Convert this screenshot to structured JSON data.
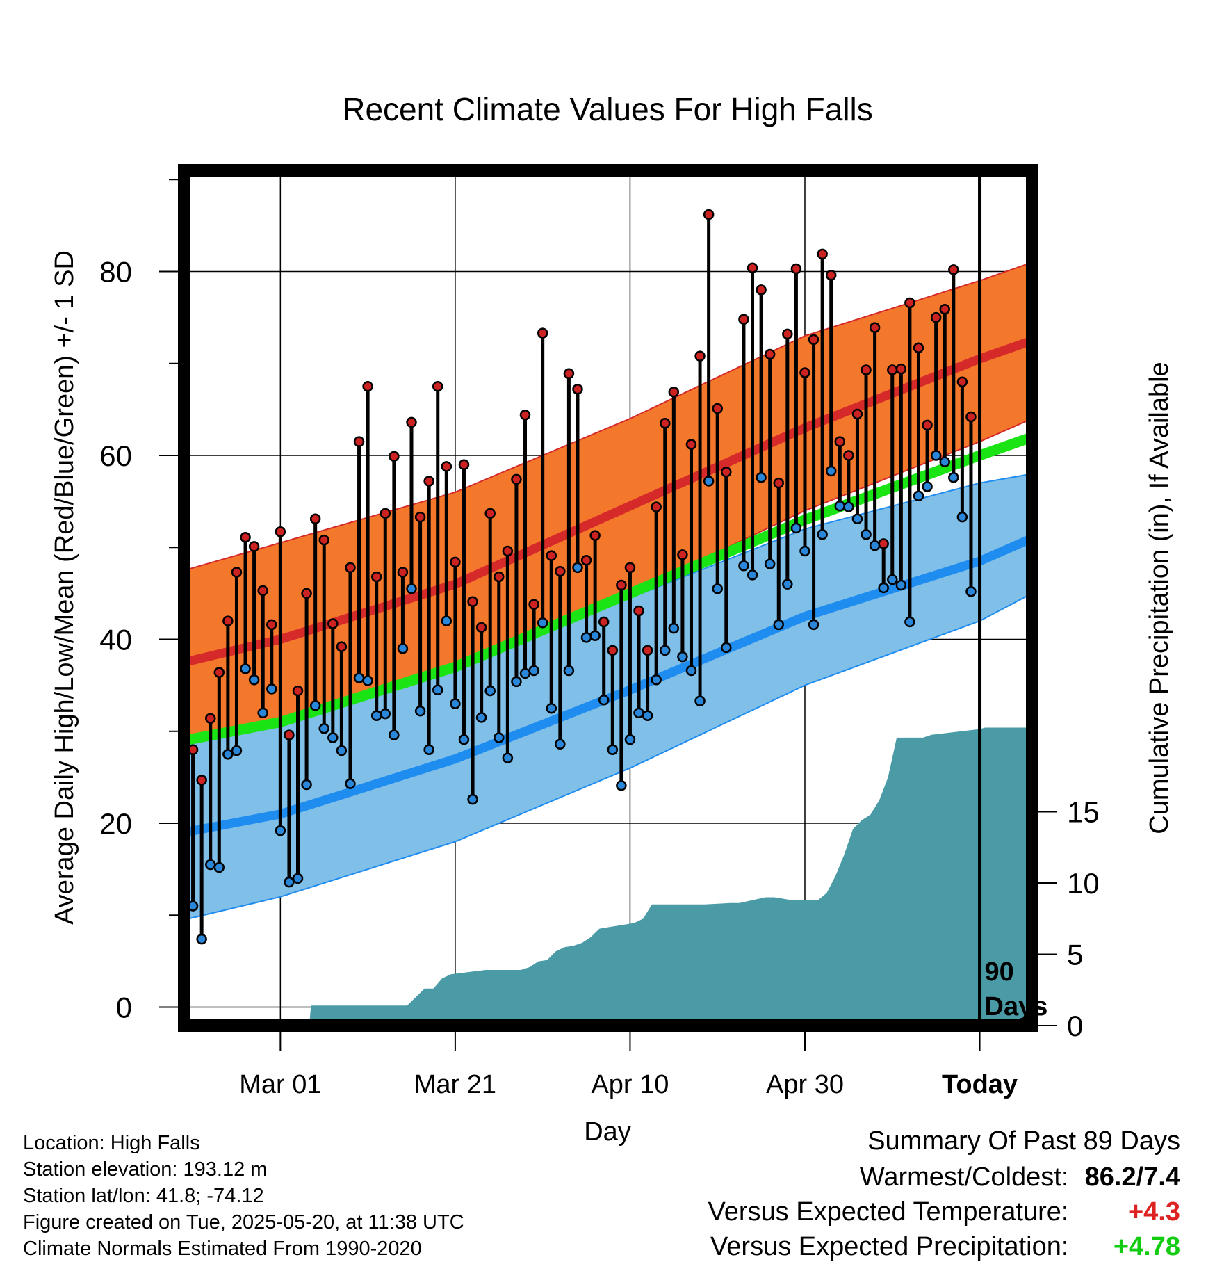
{
  "chart_data": {
    "type": "line",
    "title": "Recent Climate Values For High Falls",
    "xlabel": "Day",
    "ylabel": "Average Daily High/Low/Mean (Red/Blue/Green) +/- 1 SD",
    "y2label": "Cumulative Precipitation (in), If Available",
    "xlim": [
      -11,
      86
    ],
    "ylim": [
      -2,
      91
    ],
    "y2lim": [
      0,
      60
    ],
    "x_ticks": [
      {
        "day": 0,
        "label": "Mar 01"
      },
      {
        "day": 20,
        "label": "Mar 21"
      },
      {
        "day": 40,
        "label": "Apr 10"
      },
      {
        "day": 60,
        "label": "Apr 30"
      },
      {
        "day": 80,
        "label": "Today"
      }
    ],
    "y_ticks": [
      0,
      20,
      40,
      60,
      80
    ],
    "y2_ticks": [
      0,
      5,
      10,
      15
    ],
    "today_day": 80,
    "today_label_1": "90",
    "today_label_2": "Days",
    "normal_high": {
      "x": [
        -11,
        0,
        20,
        40,
        60,
        80,
        86
      ],
      "mean": [
        37.5,
        40.0,
        46.0,
        54.5,
        63.0,
        70.5,
        72.5
      ],
      "upper": [
        47.5,
        50.5,
        56.0,
        64.0,
        73.0,
        79.0,
        81.0
      ],
      "lower": [
        29.0,
        31.0,
        36.5,
        45.0,
        54.0,
        61.5,
        64.0
      ]
    },
    "normal_low": {
      "x": [
        -11,
        0,
        20,
        40,
        60,
        80,
        86
      ],
      "mean": [
        19.0,
        21.0,
        27.0,
        34.5,
        42.5,
        48.5,
        51.0
      ],
      "upper": [
        29.0,
        31.5,
        37.0,
        44.5,
        52.0,
        57.0,
        58.0
      ],
      "lower": [
        9.5,
        12.0,
        18.0,
        26.0,
        35.0,
        42.0,
        45.0
      ]
    },
    "normal_mean": {
      "x": [
        -11,
        0,
        20,
        40,
        60,
        80,
        86
      ],
      "values": [
        29.0,
        31.0,
        37.0,
        45.0,
        53.0,
        60.0,
        62.0
      ]
    },
    "daily_high_low": [
      [
        -10,
        28,
        11
      ],
      [
        -9,
        24.7,
        7.4
      ],
      [
        -8,
        31.4,
        15.5
      ],
      [
        -7,
        36.4,
        15.2
      ],
      [
        -6,
        42,
        27.5
      ],
      [
        -5,
        47.3,
        27.9
      ],
      [
        -4,
        51.1,
        36.8
      ],
      [
        -3,
        50.1,
        35.6
      ],
      [
        -2,
        45.3,
        32
      ],
      [
        -1,
        41.6,
        34.6
      ],
      [
        0,
        51.7,
        19.2
      ],
      [
        1,
        29.6,
        13.6
      ],
      [
        2,
        34.4,
        14
      ],
      [
        3,
        45,
        24.2
      ],
      [
        4,
        53.1,
        32.8
      ],
      [
        5,
        50.8,
        30.3
      ],
      [
        6,
        41.7,
        29.3
      ],
      [
        7,
        39.2,
        27.9
      ],
      [
        8,
        47.8,
        24.3
      ],
      [
        9,
        61.5,
        35.8
      ],
      [
        10,
        67.5,
        35.5
      ],
      [
        11,
        46.8,
        31.7
      ],
      [
        12,
        53.7,
        31.9
      ],
      [
        13,
        59.9,
        29.6
      ],
      [
        14,
        47.3,
        39
      ],
      [
        15,
        63.6,
        45.5
      ],
      [
        16,
        53.3,
        32.2
      ],
      [
        17,
        57.2,
        28
      ],
      [
        18,
        67.5,
        34.5
      ],
      [
        19,
        58.8,
        42
      ],
      [
        20,
        48.4,
        33
      ],
      [
        21,
        59,
        29.1
      ],
      [
        22,
        44.1,
        22.6
      ],
      [
        23,
        41.3,
        31.5
      ],
      [
        24,
        53.7,
        34.4
      ],
      [
        25,
        46.8,
        29.3
      ],
      [
        26,
        49.6,
        27.1
      ],
      [
        27,
        57.4,
        35.4
      ],
      [
        28,
        64.4,
        36.3
      ],
      [
        29,
        43.8,
        36.6
      ],
      [
        30,
        73.3,
        41.8
      ],
      [
        31,
        49.1,
        32.5
      ],
      [
        32,
        47.4,
        28.6
      ],
      [
        33,
        68.9,
        36.6
      ],
      [
        34,
        67.2,
        47.8
      ],
      [
        35,
        48.6,
        40.2
      ],
      [
        36,
        51.3,
        40.4
      ],
      [
        37,
        41.9,
        33.4
      ],
      [
        38,
        38.8,
        28
      ],
      [
        39,
        45.9,
        24.1
      ],
      [
        40,
        47.8,
        29.1
      ],
      [
        41,
        43.1,
        32
      ],
      [
        42,
        38.8,
        31.7
      ],
      [
        43,
        54.4,
        35.6
      ],
      [
        44,
        63.5,
        38.8
      ],
      [
        45,
        66.9,
        41.2
      ],
      [
        46,
        49.2,
        38.1
      ],
      [
        47,
        61.2,
        36.6
      ],
      [
        48,
        70.8,
        33.3
      ],
      [
        49,
        86.2,
        57.2
      ],
      [
        50,
        65.1,
        45.5
      ],
      [
        51,
        58.2,
        39.1
      ],
      [
        53,
        74.8,
        48
      ],
      [
        54,
        80.4,
        47
      ],
      [
        55,
        78,
        57.6
      ],
      [
        56,
        71,
        48.2
      ],
      [
        57,
        57,
        41.6
      ],
      [
        58,
        73.2,
        46
      ],
      [
        59,
        80.3,
        52.1
      ],
      [
        60,
        69,
        49.6
      ],
      [
        61,
        72.6,
        41.6
      ],
      [
        62,
        81.9,
        51.4
      ],
      [
        63,
        79.6,
        58.3
      ],
      [
        64,
        61.5,
        54.5
      ],
      [
        65,
        60,
        54.4
      ],
      [
        66,
        64.5,
        53.1
      ],
      [
        67,
        69.3,
        51.4
      ],
      [
        68,
        73.9,
        50.2
      ],
      [
        69,
        50.4,
        45.6
      ],
      [
        70,
        69.3,
        46.5
      ],
      [
        71,
        69.4,
        45.9
      ],
      [
        72,
        76.6,
        41.9
      ],
      [
        73,
        71.7,
        55.6
      ],
      [
        74,
        63.3,
        56.6
      ],
      [
        75,
        75,
        60
      ],
      [
        76,
        75.9,
        59.3
      ],
      [
        77,
        80.2,
        57.6
      ],
      [
        78,
        68,
        53.3
      ],
      [
        79,
        64.2,
        45.2
      ]
    ],
    "cumulative_precip": {
      "x": [
        3.3,
        3.5,
        14.5,
        15.5,
        16.5,
        17.5,
        18.5,
        19.5,
        23.5,
        27.5,
        28.5,
        29.5,
        30.5,
        31.5,
        32.5,
        33.5,
        34.5,
        35.5,
        36.5,
        37.5,
        39.5,
        40.5,
        41.5,
        42.5,
        46.5,
        48.5,
        51.5,
        52.5,
        55.5,
        56.5,
        58.5,
        61.5,
        62.5,
        63.5,
        64.5,
        65.5,
        66.5,
        67.5,
        68.5,
        69.5,
        70.5,
        71.5,
        73.5,
        74.5,
        80,
        80.6,
        86
      ],
      "values": [
        0,
        1.4,
        1.4,
        2.0,
        2.6,
        2.6,
        3.3,
        3.6,
        3.9,
        3.9,
        4.1,
        4.5,
        4.6,
        5.2,
        5.5,
        5.6,
        5.8,
        6.2,
        6.8,
        6.9,
        7.1,
        7.2,
        7.5,
        8.5,
        8.5,
        8.5,
        8.6,
        8.6,
        9.0,
        9.0,
        8.8,
        8.8,
        9.3,
        10.5,
        12.0,
        13.8,
        14.4,
        14.8,
        15.8,
        17.4,
        20.2,
        20.2,
        20.2,
        20.4,
        20.8,
        20.9,
        20.9
      ]
    },
    "colors": {
      "high_band": "#f4782c",
      "high_mean": "#d62a2a",
      "low_band": "#7fbfe8",
      "low_mean": "#1f8cf0",
      "mean_line": "#1be414",
      "precip": "#4a9ba5",
      "high_dot": "#cc2222",
      "low_dot": "#2a86d8"
    }
  },
  "info": {
    "location": "Location: High Falls",
    "elevation": "Station elevation: 193.12 m",
    "latlon": "Station lat/lon: 41.8; -74.12",
    "created": "Figure created on Tue, 2025-05-20, at 11:38 UTC",
    "normals": "Climate Normals Estimated From 1990-2020"
  },
  "summary": {
    "title": "Summary Of Past 89 Days",
    "warm_label": "Warmest/Coldest:",
    "warm_value": "86.2/7.4",
    "temp_label": "Versus Expected Temperature:",
    "temp_value": "+4.3",
    "temp_color": "#dd2222",
    "precip_label": "Versus Expected Precipitation:",
    "precip_value": "+4.78",
    "precip_color": "#11cc11"
  }
}
